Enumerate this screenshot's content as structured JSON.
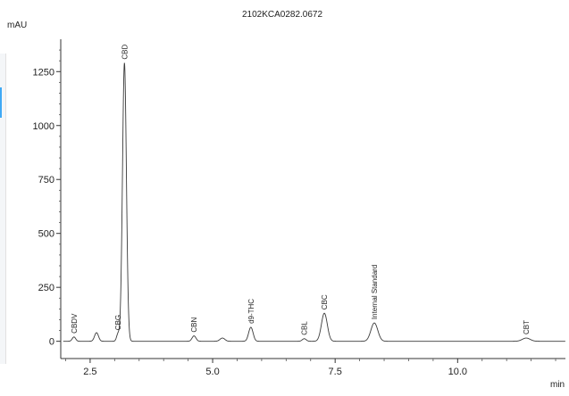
{
  "chart_data": {
    "type": "line",
    "title": "2102KCA0282.0672",
    "xlabel": "min",
    "ylabel": "mAU",
    "xlim": [
      1.9,
      12.2
    ],
    "ylim": [
      -80,
      1400
    ],
    "x_ticks": [
      2.5,
      5.0,
      7.5,
      10.0
    ],
    "x_tick_labels": [
      "2.5",
      "5.0",
      "7.5",
      "10.0"
    ],
    "y_ticks": [
      0,
      250,
      500,
      750,
      1000,
      1250
    ],
    "y_tick_labels": [
      "0",
      "250",
      "500",
      "750",
      "1000",
      "1250"
    ],
    "grid": false,
    "baseline": 0,
    "peaks": [
      {
        "label": "CBDV",
        "rt": 2.17,
        "height": 20,
        "width": 0.035
      },
      {
        "label": "",
        "rt": 2.63,
        "height": 40,
        "width": 0.04
      },
      {
        "label": "CBG",
        "rt": 3.07,
        "height": 35,
        "width": 0.03
      },
      {
        "label": "CBD",
        "rt": 3.2,
        "height": 1290,
        "width": 0.04
      },
      {
        "label": "CBN",
        "rt": 4.62,
        "height": 25,
        "width": 0.04
      },
      {
        "label": "",
        "rt": 5.2,
        "height": 15,
        "width": 0.05
      },
      {
        "label": "d9-THC",
        "rt": 5.78,
        "height": 65,
        "width": 0.045
      },
      {
        "label": "CBL",
        "rt": 6.87,
        "height": 12,
        "width": 0.04
      },
      {
        "label": "CBC",
        "rt": 7.28,
        "height": 130,
        "width": 0.06
      },
      {
        "label": "Internal Standard",
        "rt": 8.3,
        "height": 85,
        "width": 0.07
      },
      {
        "label": "CBT",
        "rt": 11.4,
        "height": 15,
        "width": 0.08
      }
    ]
  }
}
